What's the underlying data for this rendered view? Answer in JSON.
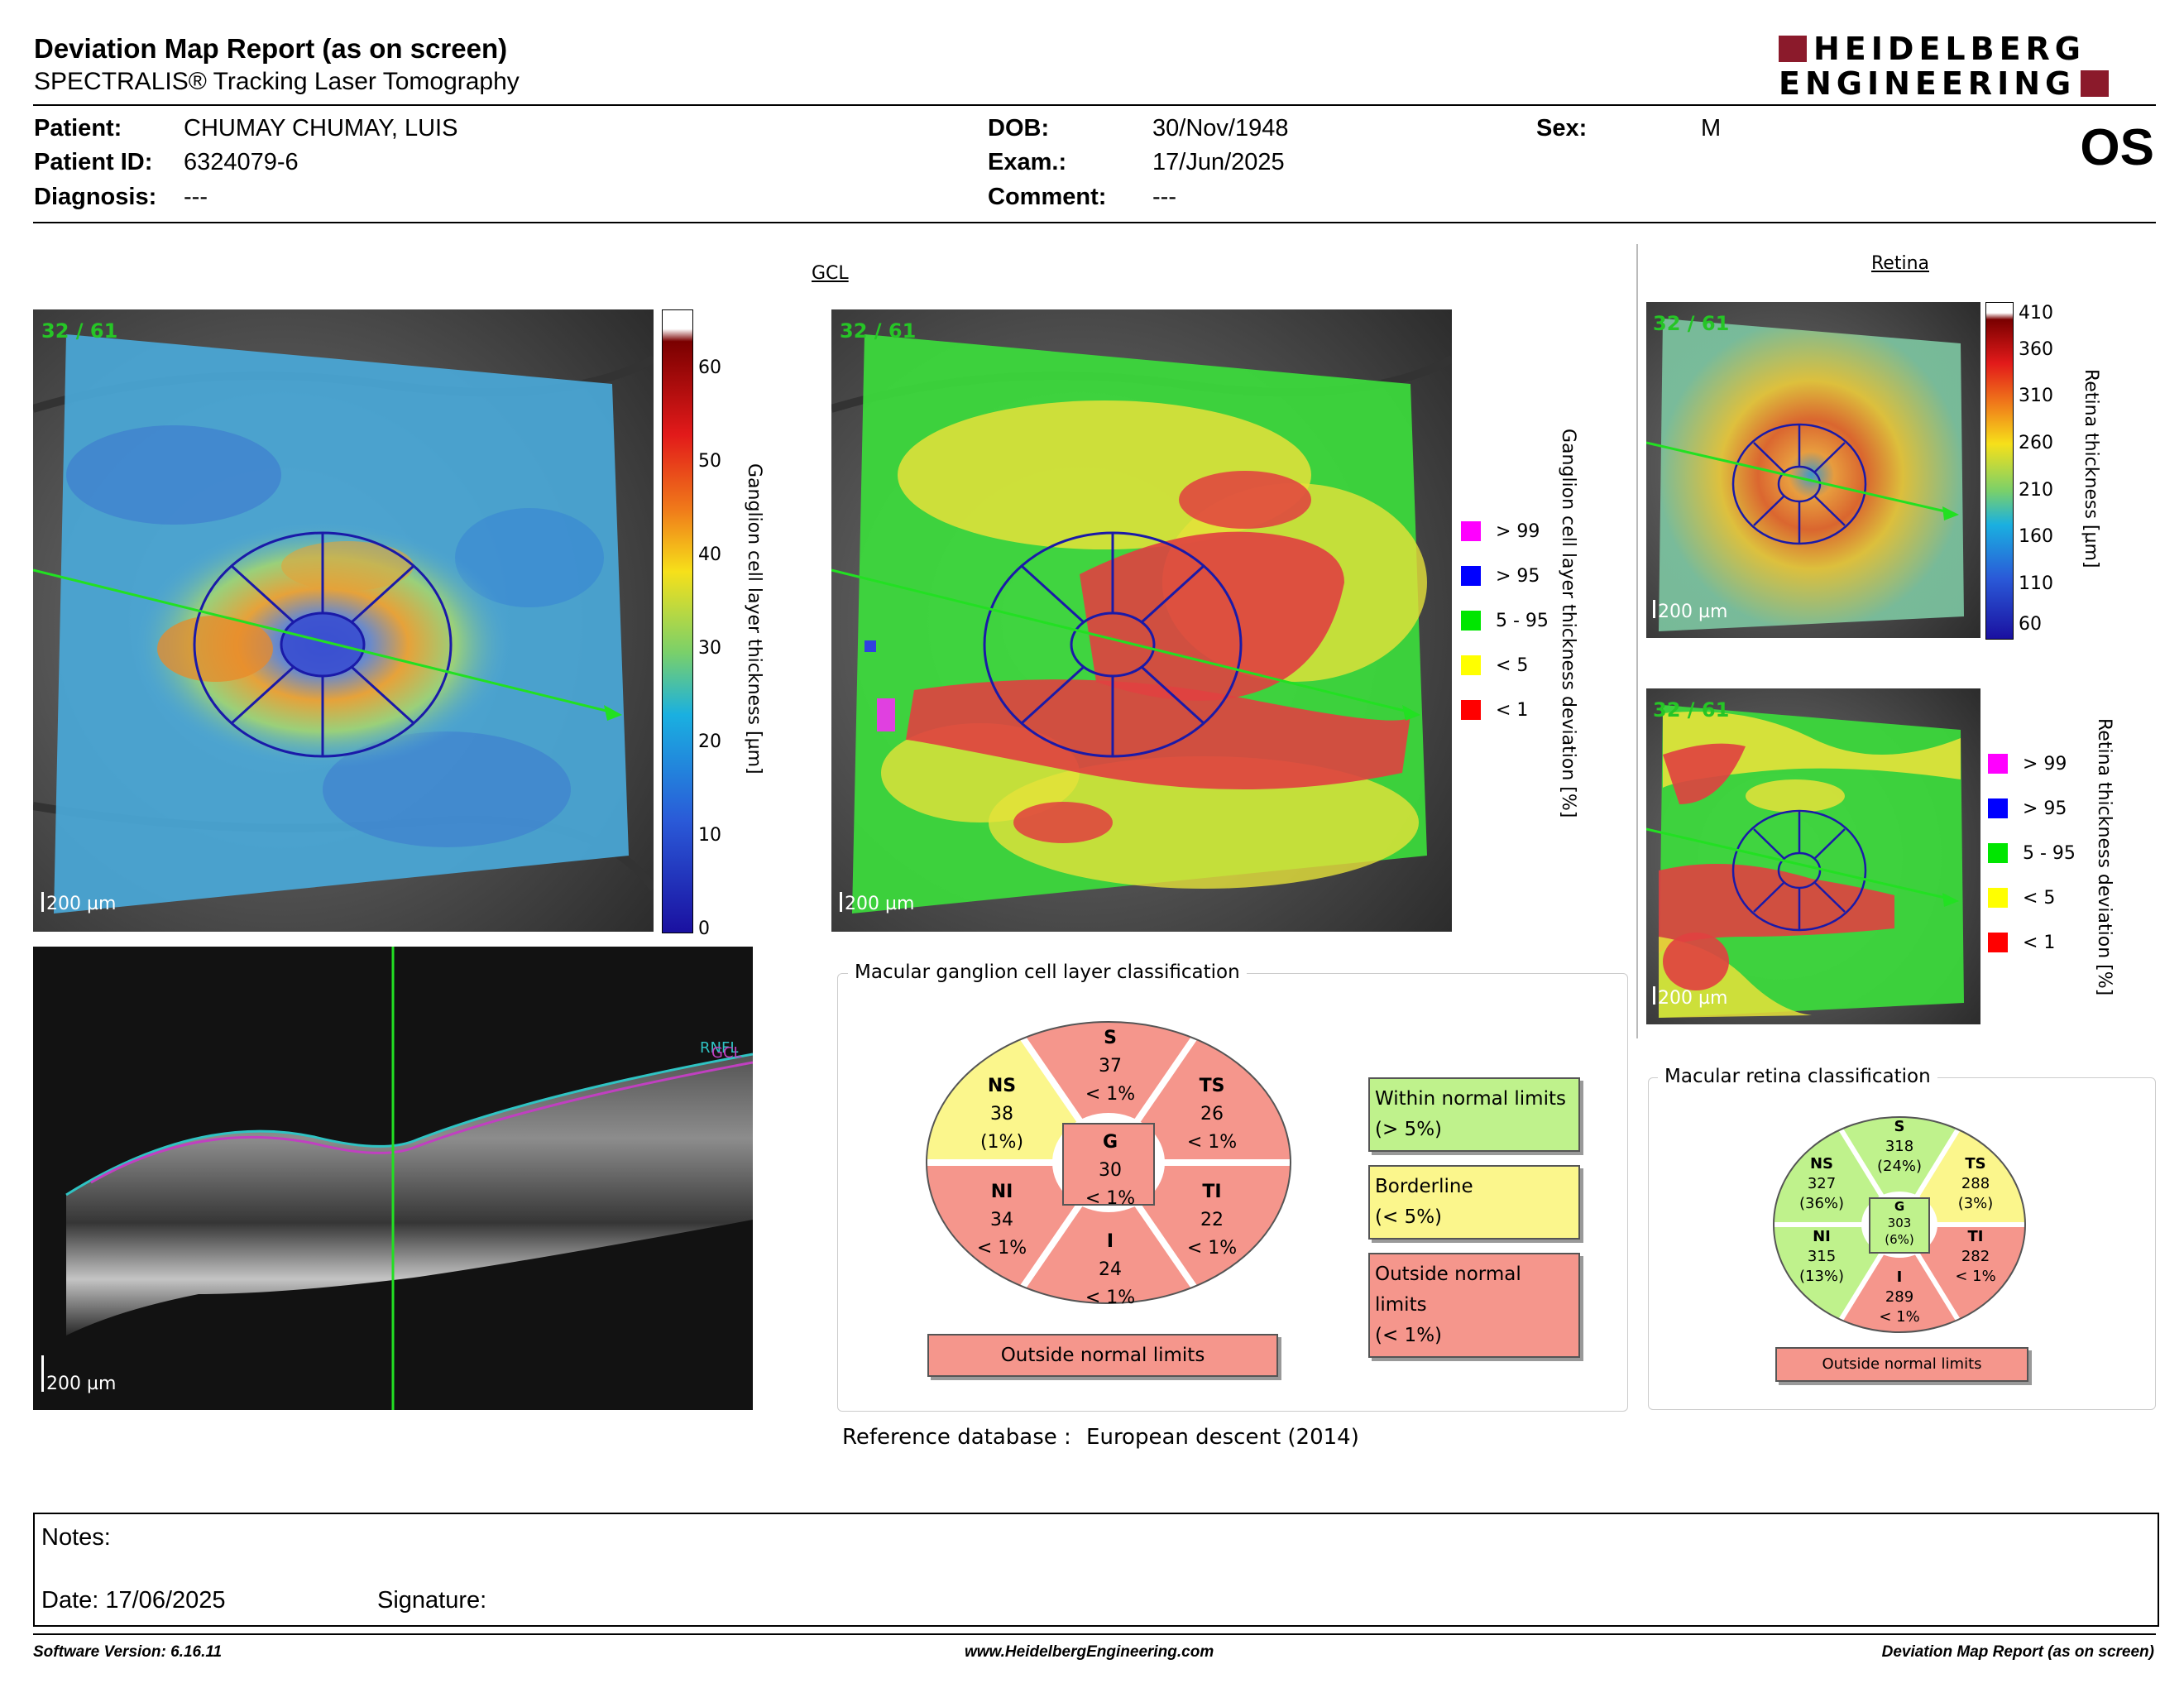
{
  "header": {
    "title": "Deviation Map Report (as on screen)",
    "subtitle": "SPECTRALIS® Tracking Laser Tomography",
    "logo_line1": "HEIDELBERG",
    "logo_line2": "ENGINEERING",
    "brand_color": "#8b1a2b"
  },
  "patient": {
    "patient_label": "Patient:",
    "patient_value": "CHUMAY CHUMAY, LUIS",
    "id_label": "Patient ID:",
    "id_value": "6324079-6",
    "diagnosis_label": "Diagnosis:",
    "diagnosis_value": "---",
    "dob_label": "DOB:",
    "dob_value": "30/Nov/1948",
    "exam_label": "Exam.:",
    "exam_value": "17/Jun/2025",
    "comment_label": "Comment:",
    "comment_value": "---",
    "sex_label": "Sex:",
    "sex_value": "M",
    "eye": "OS"
  },
  "gcl": {
    "section_title": "GCL",
    "scan_label": "32 / 61",
    "scale_label": "200 µm",
    "thickness_axis_label": "Ganglion cell layer thickness [µm]",
    "thickness_ticks": [
      "60",
      "50",
      "40",
      "30",
      "20",
      "10",
      "0"
    ],
    "deviation_axis_label": "Ganglion cell layer thickness deviation [%]",
    "legend": [
      {
        "label": "> 99",
        "color": "#ff00ff"
      },
      {
        "label": "> 95",
        "color": "#0000ff"
      },
      {
        "label": "5 - 95",
        "color": "#00e600"
      },
      {
        "label": "< 5",
        "color": "#ffff00"
      },
      {
        "label": "< 1",
        "color": "#ff0000"
      }
    ]
  },
  "bscan": {
    "layer_label": "RNFL",
    "layer_label2": "GCL",
    "scale_label": "200 µm"
  },
  "retina": {
    "section_title": "Retina",
    "scan_label": "32 / 61",
    "scale_label": "200 µm",
    "thickness_axis_label": "Retina thickness [µm]",
    "thickness_ticks": [
      "410",
      "360",
      "310",
      "260",
      "210",
      "160",
      "110",
      "60"
    ],
    "deviation_axis_label": "Retina thickness deviation [%]",
    "legend": [
      {
        "label": "> 99",
        "color": "#ff00ff"
      },
      {
        "label": "> 95",
        "color": "#0000ff"
      },
      {
        "label": "5 - 95",
        "color": "#00e600"
      },
      {
        "label": "< 5",
        "color": "#ffff00"
      },
      {
        "label": "< 1",
        "color": "#ff0000"
      }
    ]
  },
  "gcl_classification": {
    "title": "Macular ganglion cell layer classification",
    "sectors": {
      "S": {
        "name": "S",
        "value": "37",
        "pct": "< 1%",
        "status": "onl"
      },
      "NS": {
        "name": "NS",
        "value": "38",
        "pct": "(1%)",
        "status": "bl"
      },
      "TS": {
        "name": "TS",
        "value": "26",
        "pct": "< 1%",
        "status": "onl"
      },
      "G": {
        "name": "G",
        "value": "30",
        "pct": "< 1%",
        "status": "onl"
      },
      "NI": {
        "name": "NI",
        "value": "34",
        "pct": "< 1%",
        "status": "onl"
      },
      "TI": {
        "name": "TI",
        "value": "22",
        "pct": "< 1%",
        "status": "onl"
      },
      "I": {
        "name": "I",
        "value": "24",
        "pct": "< 1%",
        "status": "onl"
      }
    },
    "overall": "Outside normal limits",
    "key": {
      "wnl_1": "Within normal limits",
      "wnl_2": "(> 5%)",
      "bl_1": "Borderline",
      "bl_2": "(< 5%)",
      "onl_1": "Outside normal limits",
      "onl_2": "(< 1%)"
    },
    "colors": {
      "onl": "#f5968c",
      "bl": "#fbf68c",
      "wnl": "#bff28c"
    }
  },
  "retina_classification": {
    "title": "Macular retina classification",
    "sectors": {
      "S": {
        "name": "S",
        "value": "318",
        "pct": "(24%)",
        "status": "wnl"
      },
      "NS": {
        "name": "NS",
        "value": "327",
        "pct": "(36%)",
        "status": "wnl"
      },
      "TS": {
        "name": "TS",
        "value": "288",
        "pct": "(3%)",
        "status": "bl"
      },
      "G": {
        "name": "G",
        "value": "303",
        "pct": "(6%)",
        "status": "wnl"
      },
      "NI": {
        "name": "NI",
        "value": "315",
        "pct": "(13%)",
        "status": "wnl"
      },
      "TI": {
        "name": "TI",
        "value": "282",
        "pct": "< 1%",
        "status": "onl"
      },
      "I": {
        "name": "I",
        "value": "289",
        "pct": "< 1%",
        "status": "onl"
      }
    },
    "overall": "Outside normal limits"
  },
  "reference": {
    "label": "Reference database :",
    "value": "European descent (2014)"
  },
  "notes": {
    "notes_label": "Notes:",
    "date_label": "Date: 17/06/2025",
    "signature_label": "Signature:"
  },
  "footer": {
    "software": "Software Version: 6.16.11",
    "url": "www.HeidelbergEngineering.com",
    "report": "Deviation Map Report (as on screen)"
  }
}
